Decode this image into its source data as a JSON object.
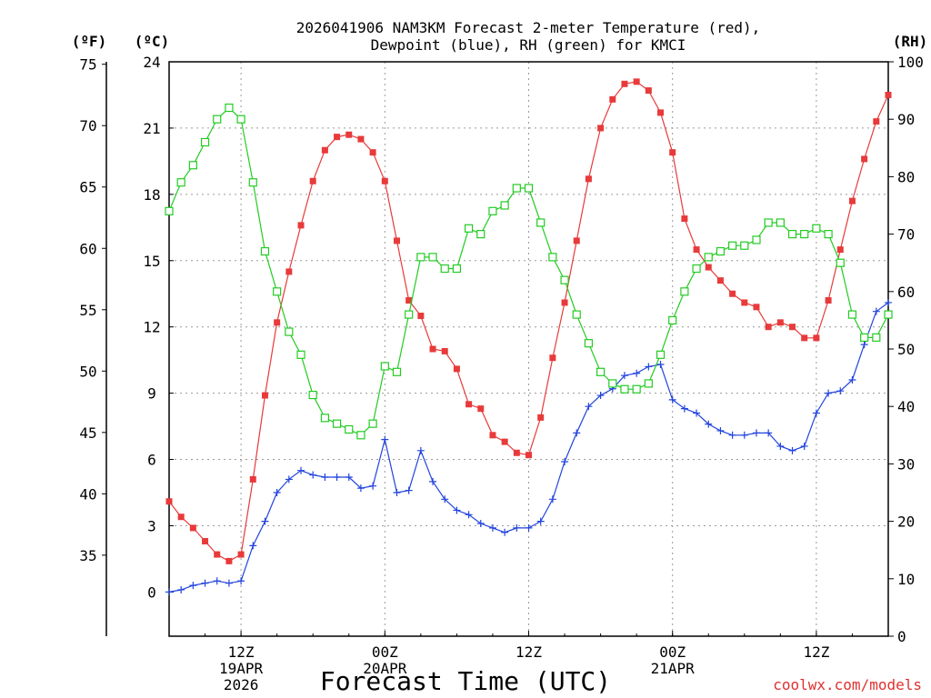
{
  "chart_data": {
    "type": "line",
    "title_line1": "2026041906 NAM3KM Forecast 2-meter Temperature (red),",
    "title_line2": "Dewpoint (blue), RH (green) for KMCI",
    "xlabel": "Forecast Time (UTC)",
    "credit": "coolwx.com/models",
    "units": {
      "fahrenheit": "(ºF)",
      "celsius": "(ºC)",
      "rh": "(RH)"
    },
    "x_range_hours": [
      0,
      60
    ],
    "ylim_c": [
      -2,
      24
    ],
    "ylim_rh": [
      0,
      100
    ],
    "f_axis_range": [
      28.4,
      75.2
    ],
    "celsius_ticks": [
      0,
      3,
      6,
      9,
      12,
      15,
      18,
      21,
      24
    ],
    "celsius_tick_labels": [
      "0",
      "3",
      "6",
      "9",
      "12",
      "15",
      "18",
      "21",
      "24"
    ],
    "fahrenheit_ticks": [
      35,
      40,
      45,
      50,
      55,
      60,
      65,
      70,
      75
    ],
    "fahrenheit_tick_labels": [
      "35",
      "40",
      "45",
      "50",
      "55",
      "60",
      "65",
      "70",
      "75"
    ],
    "rh_ticks": [
      0,
      10,
      20,
      30,
      40,
      50,
      60,
      70,
      80,
      90,
      100
    ],
    "rh_tick_labels": [
      "0",
      "10",
      "20",
      "30",
      "40",
      "50",
      "60",
      "70",
      "80",
      "90",
      "100"
    ],
    "x_ticks": [
      {
        "hour": 6,
        "lines": [
          "12Z",
          "19APR",
          "2026"
        ]
      },
      {
        "hour": 18,
        "lines": [
          "00Z",
          "20APR"
        ]
      },
      {
        "hour": 30,
        "lines": [
          "12Z"
        ]
      },
      {
        "hour": 42,
        "lines": [
          "00Z",
          "21APR"
        ]
      },
      {
        "hour": 54,
        "lines": [
          "12Z"
        ]
      }
    ],
    "series": [
      {
        "name": "2-meter Temperature",
        "unit": "degC",
        "color": "#e83a3a",
        "marker": "filled-square",
        "axis": "celsius",
        "x": [
          0,
          1,
          2,
          3,
          4,
          5,
          6,
          7,
          8,
          9,
          10,
          11,
          12,
          13,
          14,
          15,
          16,
          17,
          18,
          19,
          20,
          21,
          22,
          23,
          24,
          25,
          26,
          27,
          28,
          29,
          30,
          31,
          32,
          33,
          34,
          35,
          36,
          37,
          38,
          39,
          40,
          41,
          42,
          43,
          44,
          45,
          46,
          47,
          48,
          49,
          50,
          51,
          52,
          53,
          54,
          55,
          56,
          57,
          58,
          59,
          60
        ],
        "values": [
          4.1,
          3.4,
          2.9,
          2.3,
          1.7,
          1.4,
          1.7,
          5.1,
          8.9,
          12.2,
          14.5,
          16.6,
          18.6,
          20.0,
          20.6,
          20.7,
          20.5,
          19.9,
          18.6,
          15.9,
          13.2,
          12.5,
          11.0,
          10.9,
          10.1,
          8.5,
          8.3,
          7.1,
          6.8,
          6.3,
          6.2,
          7.9,
          10.6,
          13.1,
          15.9,
          18.7,
          21.0,
          22.3,
          23.0,
          23.1,
          22.7,
          21.7,
          19.9,
          16.9,
          15.5,
          14.7,
          14.1,
          13.5,
          13.1,
          12.9,
          12.0,
          12.2,
          12.0,
          11.5,
          11.5,
          13.2,
          15.5,
          17.7,
          19.6,
          21.3,
          22.5
        ]
      },
      {
        "name": "Dewpoint",
        "unit": "degC",
        "color": "#2244dd",
        "marker": "plus",
        "axis": "celsius",
        "x": [
          0,
          1,
          2,
          3,
          4,
          5,
          6,
          7,
          8,
          9,
          10,
          11,
          12,
          13,
          14,
          15,
          16,
          17,
          18,
          19,
          20,
          21,
          22,
          23,
          24,
          25,
          26,
          27,
          28,
          29,
          30,
          31,
          32,
          33,
          34,
          35,
          36,
          37,
          38,
          39,
          40,
          41,
          42,
          43,
          44,
          45,
          46,
          47,
          48,
          49,
          50,
          51,
          52,
          53,
          54,
          55,
          56,
          57,
          58,
          59,
          60
        ],
        "values": [
          0.0,
          0.1,
          0.3,
          0.4,
          0.5,
          0.4,
          0.5,
          2.1,
          3.2,
          4.5,
          5.1,
          5.5,
          5.3,
          5.2,
          5.2,
          5.2,
          4.7,
          4.8,
          6.9,
          4.5,
          4.6,
          6.4,
          5.0,
          4.2,
          3.7,
          3.5,
          3.1,
          2.9,
          2.7,
          2.9,
          2.9,
          3.2,
          4.2,
          5.9,
          7.2,
          8.4,
          8.9,
          9.2,
          9.8,
          9.9,
          10.2,
          10.3,
          8.7,
          8.3,
          8.1,
          7.6,
          7.3,
          7.1,
          7.1,
          7.2,
          7.2,
          6.6,
          6.4,
          6.6,
          8.1,
          9.0,
          9.1,
          9.6,
          11.2,
          12.7,
          13.1
        ]
      },
      {
        "name": "RH",
        "unit": "percent",
        "color": "#22cc22",
        "marker": "open-square",
        "axis": "rh",
        "x": [
          0,
          1,
          2,
          3,
          4,
          5,
          6,
          7,
          8,
          9,
          10,
          11,
          12,
          13,
          14,
          15,
          16,
          17,
          18,
          19,
          20,
          21,
          22,
          23,
          24,
          25,
          26,
          27,
          28,
          29,
          30,
          31,
          32,
          33,
          34,
          35,
          36,
          37,
          38,
          39,
          40,
          41,
          42,
          43,
          44,
          45,
          46,
          47,
          48,
          49,
          50,
          51,
          52,
          53,
          54,
          55,
          56,
          57,
          58,
          59,
          60
        ],
        "values": [
          74,
          79,
          82,
          86,
          90,
          92,
          90,
          79,
          67,
          60,
          53,
          49,
          42,
          38,
          37,
          36,
          35,
          37,
          47,
          46,
          56,
          66,
          66,
          64,
          64,
          71,
          70,
          74,
          75,
          78,
          78,
          72,
          66,
          62,
          56,
          51,
          46,
          44,
          43,
          43,
          44,
          49,
          55,
          60,
          64,
          66,
          67,
          68,
          68,
          69,
          72,
          72,
          70,
          70,
          71,
          70,
          65,
          56,
          52,
          52,
          56
        ]
      }
    ]
  }
}
